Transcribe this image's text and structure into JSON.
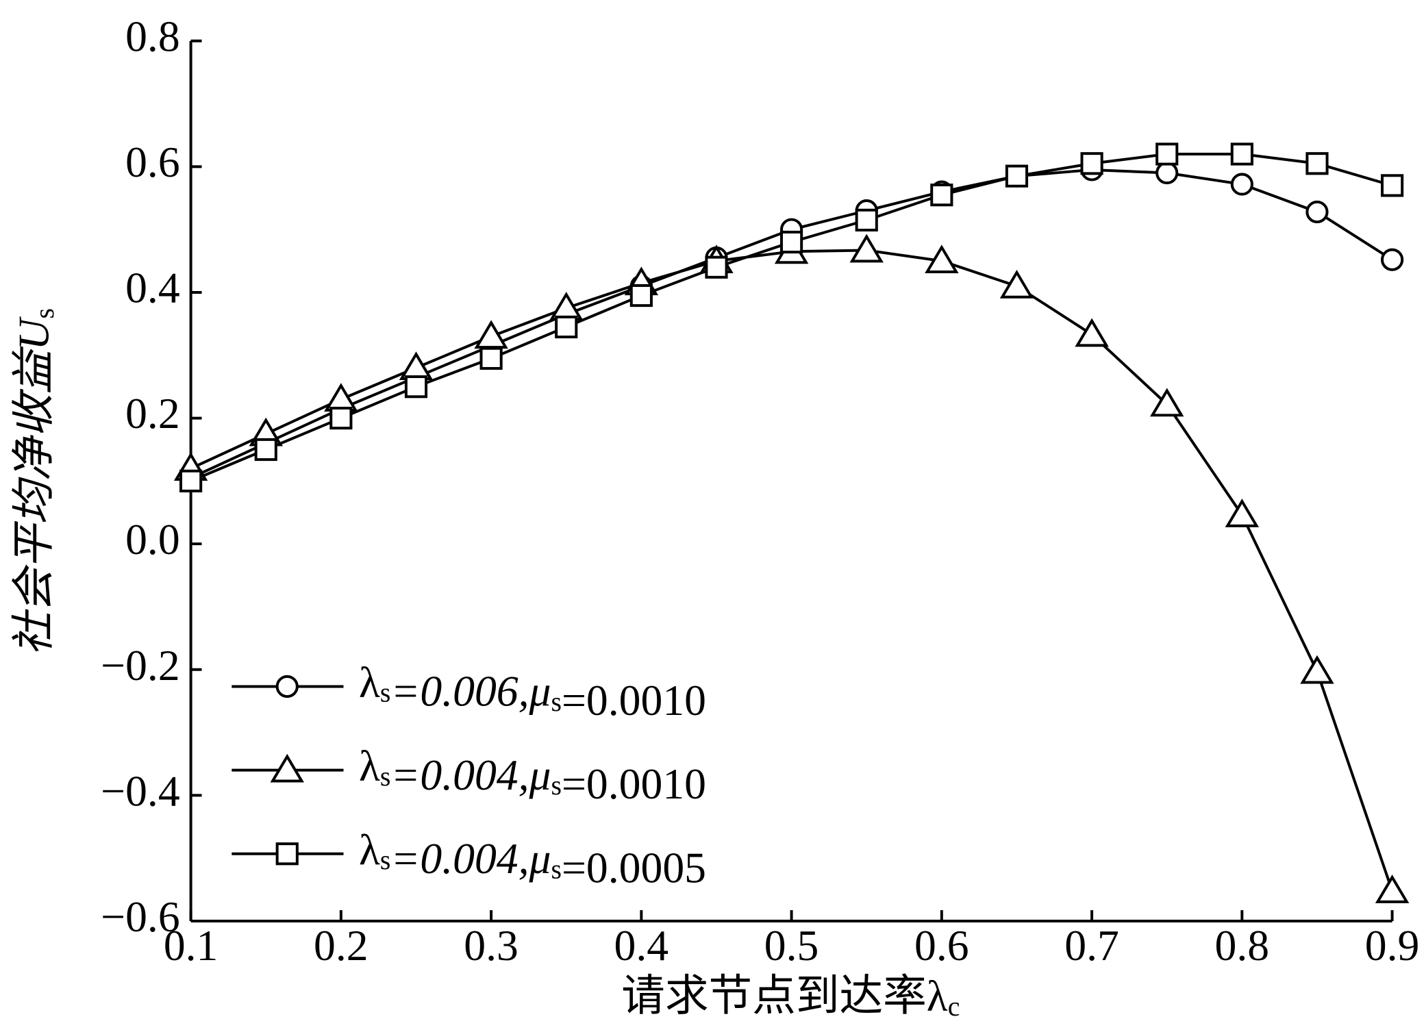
{
  "chart_data": {
    "type": "line",
    "x_label": "请求节点到达率λc",
    "y_label": "社会平均净收益Us",
    "x": [
      0.1,
      0.15,
      0.2,
      0.25,
      0.3,
      0.35,
      0.4,
      0.45,
      0.5,
      0.55,
      0.6,
      0.65,
      0.7,
      0.75,
      0.8,
      0.85,
      0.9
    ],
    "xlim": [
      0.1,
      0.9
    ],
    "xticks": [
      0.1,
      0.2,
      0.3,
      0.4,
      0.5,
      0.6,
      0.7,
      0.8,
      0.9
    ],
    "ylim": [
      -0.6,
      0.8
    ],
    "yticks": [
      {
        "value": -0.6,
        "label": "−0.6"
      },
      {
        "value": -0.4,
        "label": "−0.4"
      },
      {
        "value": -0.2,
        "label": "−0.2"
      },
      {
        "value": 0,
        "label": "0.0"
      },
      0.2,
      0.4,
      0.6,
      0.8
    ],
    "grid": false,
    "legend": "lower left",
    "series": [
      {
        "name": "λs=0.006,μs=0.0010",
        "color": "#000000",
        "marker": "circle",
        "values": [
          0.105,
          0.16,
          0.215,
          0.265,
          0.315,
          0.365,
          0.41,
          0.455,
          0.5,
          0.53,
          0.56,
          0.585,
          0.595,
          0.59,
          0.572,
          0.528,
          0.452
        ]
      },
      {
        "name": "λs=0.004,μs=0.0010",
        "color": "#000000",
        "marker": "triangle",
        "values": [
          0.12,
          0.175,
          0.23,
          0.28,
          0.33,
          0.375,
          0.415,
          0.45,
          0.465,
          0.467,
          0.45,
          0.41,
          0.333,
          0.222,
          0.046,
          -0.203,
          -0.552
        ]
      },
      {
        "name": "λs=0.004,μs=0.0005",
        "color": "#000000",
        "marker": "square",
        "values": [
          0.1,
          0.15,
          0.2,
          0.25,
          0.295,
          0.345,
          0.395,
          0.44,
          0.48,
          0.515,
          0.555,
          0.585,
          0.605,
          0.62,
          0.62,
          0.605,
          0.57
        ]
      }
    ]
  }
}
